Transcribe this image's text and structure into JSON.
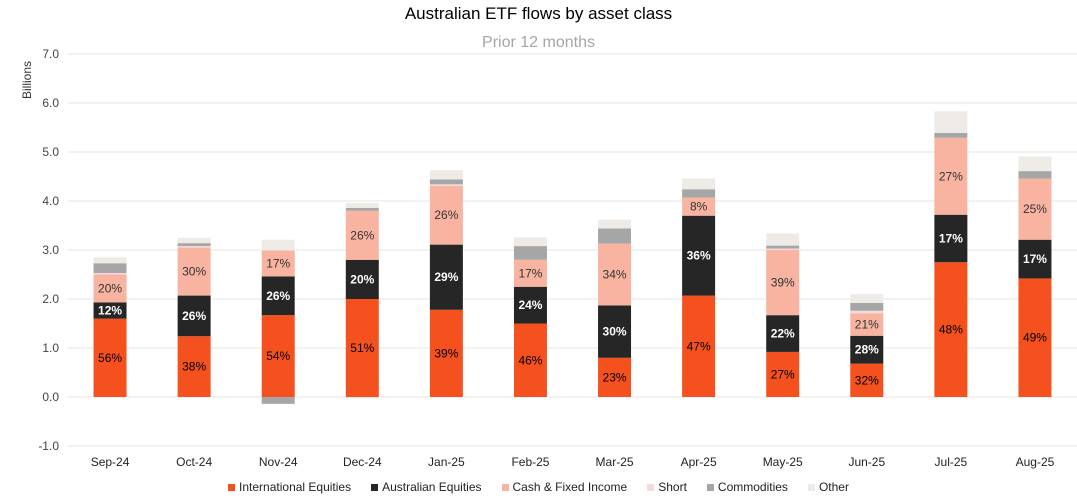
{
  "chart_data": {
    "type": "bar",
    "stacked": true,
    "title": "Australian ETF flows by asset class",
    "subtitle": "Prior 12 months",
    "ylabel": "Billions",
    "ylim": [
      -1.0,
      7.0
    ],
    "yticks": [
      "-1.0",
      "0.0",
      "1.0",
      "2.0",
      "3.0",
      "4.0",
      "5.0",
      "6.0",
      "7.0"
    ],
    "grid": true,
    "legend_position": "bottom",
    "categories": [
      "Sep-24",
      "Oct-24",
      "Nov-24",
      "Dec-24",
      "Jan-25",
      "Feb-25",
      "Mar-25",
      "Apr-25",
      "May-25",
      "Jun-25",
      "Jul-25",
      "Aug-25"
    ],
    "series": [
      {
        "name": "International Equities",
        "color": "#f4511e",
        "label_color": "#000000",
        "values": [
          1.6,
          1.24,
          1.67,
          2.0,
          1.78,
          1.5,
          0.8,
          2.07,
          0.92,
          0.68,
          2.75,
          2.42
        ],
        "labels": [
          "56%",
          "38%",
          "54%",
          "51%",
          "39%",
          "46%",
          "23%",
          "47%",
          "27%",
          "32%",
          "48%",
          "49%"
        ]
      },
      {
        "name": "Australian Equities",
        "color": "#262626",
        "label_color": "#ffffff",
        "values": [
          0.33,
          0.83,
          0.79,
          0.8,
          1.33,
          0.75,
          1.07,
          1.63,
          0.75,
          0.57,
          0.97,
          0.79
        ],
        "labels": [
          "12%",
          "26%",
          "26%",
          "20%",
          "29%",
          "24%",
          "30%",
          "36%",
          "22%",
          "28%",
          "17%",
          "17%"
        ]
      },
      {
        "name": "Cash & Fixed Income",
        "color": "#f9b4a1",
        "label_color": "#333333",
        "values": [
          0.57,
          0.98,
          0.53,
          1.0,
          1.2,
          0.55,
          1.26,
          0.37,
          1.33,
          0.46,
          1.57,
          1.25
        ],
        "labels": [
          "20%",
          "30%",
          "17%",
          "26%",
          "26%",
          "17%",
          "34%",
          "8%",
          "39%",
          "21%",
          "27%",
          "25%"
        ]
      },
      {
        "name": "Short",
        "color": "#f2dcdb",
        "label_color": "#333333",
        "values": [
          0.03,
          0.03,
          0.0,
          0.0,
          0.03,
          0.0,
          0.0,
          0.0,
          0.03,
          0.05,
          0.0,
          0.0
        ],
        "labels": [
          "",
          "",
          "",
          "",
          "",
          "",
          "",
          "",
          "",
          "",
          "",
          ""
        ]
      },
      {
        "name": "Commodities",
        "color": "#a6a6a6",
        "label_color": "#333333",
        "values": [
          0.2,
          0.06,
          -0.14,
          0.06,
          0.1,
          0.28,
          0.31,
          0.17,
          0.06,
          0.16,
          0.1,
          0.15
        ],
        "labels": [
          "",
          "",
          "",
          "",
          "",
          "",
          "",
          "",
          "",
          "",
          "",
          ""
        ]
      },
      {
        "name": "Other",
        "color": "#eeebe7",
        "label_color": "#333333",
        "values": [
          0.12,
          0.11,
          0.22,
          0.1,
          0.19,
          0.18,
          0.18,
          0.22,
          0.25,
          0.18,
          0.44,
          0.3
        ],
        "labels": [
          "",
          "",
          "",
          "",
          "",
          "",
          "",
          "",
          "",
          "",
          "",
          ""
        ]
      }
    ],
    "extra_negatives": {
      "series": "Other",
      "values": [
        0.0,
        0.0,
        0.0,
        -0.03,
        0.0,
        0.0,
        0.0,
        0.0,
        0.0,
        0.0,
        0.0,
        0.0
      ]
    }
  }
}
